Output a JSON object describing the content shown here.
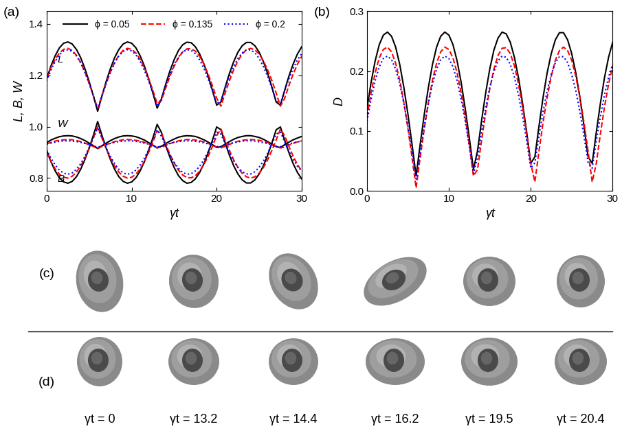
{
  "chart_data": [
    {
      "type": "line",
      "panel": "(a)",
      "xlabel": "γt",
      "ylabel": "L, B, W",
      "xlim": [
        0,
        30
      ],
      "xticks": [
        0,
        10,
        20,
        30
      ],
      "ylim": [
        0.75,
        1.45
      ],
      "yticks": [
        0.8,
        {
          "value": 1.0,
          "label": "1.0"
        },
        1.2,
        1.4
      ],
      "legend": "upper center",
      "annotations": [
        {
          "text": "L",
          "x": 1.3,
          "y": 1.25
        },
        {
          "text": "W",
          "x": 1.3,
          "y": 1.0
        },
        {
          "text": "B",
          "x": 1.3,
          "y": 0.785
        }
      ],
      "x": [
        0,
        0.5,
        1,
        1.5,
        2,
        2.5,
        3,
        3.5,
        4,
        4.5,
        5,
        5.5,
        6,
        6.5,
        7,
        7.5,
        8,
        8.5,
        9,
        9.5,
        10,
        10.5,
        11,
        11.5,
        12,
        12.5,
        13,
        13.5,
        14,
        14.5,
        15,
        15.5,
        16,
        16.5,
        17,
        17.5,
        18,
        18.5,
        19,
        19.5,
        20,
        20.5,
        21,
        21.5,
        22,
        22.5,
        23,
        23.5,
        24,
        24.5,
        25,
        25.5,
        26,
        26.5,
        27,
        27.5,
        28,
        28.5,
        29,
        29.5,
        30
      ],
      "series": [
        {
          "name": "ϕ = 0.05",
          "color": "#000000",
          "line_style": "solid",
          "curves": {
            "L": [
              1.186,
              1.236,
              1.276,
              1.307,
              1.325,
              1.33,
              1.322,
              1.301,
              1.269,
              1.226,
              1.176,
              1.119,
              1.06,
              1.119,
              1.176,
              1.226,
              1.269,
              1.301,
              1.322,
              1.33,
              1.325,
              1.307,
              1.276,
              1.236,
              1.186,
              1.131,
              1.072,
              1.108,
              1.165,
              1.217,
              1.261,
              1.296,
              1.319,
              1.329,
              1.327,
              1.311,
              1.283,
              1.244,
              1.197,
              1.142,
              1.084,
              1.096,
              1.154,
              1.207,
              1.253,
              1.29,
              1.315,
              1.328,
              1.328,
              1.315,
              1.29,
              1.253,
              1.207,
              1.154,
              1.096,
              1.084,
              1.142,
              1.197,
              1.244,
              1.283,
              1.311
            ],
            "B": [
              0.908,
              0.864,
              0.828,
              0.801,
              0.785,
              0.78,
              0.787,
              0.805,
              0.834,
              0.872,
              0.917,
              0.967,
              1.02,
              0.967,
              0.917,
              0.872,
              0.834,
              0.805,
              0.787,
              0.78,
              0.785,
              0.801,
              0.828,
              0.864,
              0.908,
              0.957,
              1.009,
              0.978,
              0.927,
              0.881,
              0.841,
              0.81,
              0.79,
              0.78,
              0.783,
              0.797,
              0.822,
              0.856,
              0.899,
              0.947,
              0.999,
              0.988,
              0.937,
              0.889,
              0.848,
              0.816,
              0.793,
              0.781,
              0.781,
              0.793,
              0.816,
              0.848,
              0.889,
              0.937,
              0.988,
              0.999,
              0.947,
              0.899,
              0.856,
              0.822,
              0.797
            ],
            "W": [
              0.938,
              0.948,
              0.955,
              0.961,
              0.964,
              0.965,
              0.964,
              0.96,
              0.954,
              0.946,
              0.936,
              0.926,
              0.915,
              0.926,
              0.936,
              0.946,
              0.954,
              0.96,
              0.964,
              0.965,
              0.964,
              0.961,
              0.955,
              0.948,
              0.938,
              0.928,
              0.917,
              0.924,
              0.934,
              0.944,
              0.952,
              0.959,
              0.963,
              0.965,
              0.964,
              0.962,
              0.956,
              0.949,
              0.94,
              0.93,
              0.919,
              0.922,
              0.932,
              0.942,
              0.951,
              0.958,
              0.962,
              0.965,
              0.965,
              0.962,
              0.958,
              0.951,
              0.942,
              0.932,
              0.922,
              0.919,
              0.93,
              0.94,
              0.949,
              0.956,
              0.962
            ]
          }
        },
        {
          "name": "ϕ = 0.135",
          "color": "#ff0000",
          "line_style": "dashed",
          "curves": {
            "L": [
              1.188,
              1.229,
              1.262,
              1.287,
              1.301,
              1.305,
              1.297,
              1.278,
              1.25,
              1.213,
              1.169,
              1.121,
              1.07,
              1.121,
              1.169,
              1.213,
              1.25,
              1.278,
              1.297,
              1.305,
              1.301,
              1.287,
              1.262,
              1.229,
              1.188,
              1.141,
              1.09,
              1.101,
              1.15,
              1.196,
              1.236,
              1.268,
              1.291,
              1.303,
              1.304,
              1.294,
              1.274,
              1.243,
              1.205,
              1.16,
              1.111,
              1.08,
              1.131,
              1.179,
              1.221,
              1.256,
              1.283,
              1.299,
              1.305,
              1.299,
              1.283,
              1.256,
              1.221,
              1.179,
              1.131,
              1.08,
              1.111,
              1.16,
              1.205,
              1.243,
              1.274
            ],
            "B": [
              0.9,
              0.865,
              0.836,
              0.815,
              0.803,
              0.8,
              0.807,
              0.823,
              0.847,
              0.878,
              0.915,
              0.957,
              1.0,
              0.957,
              0.915,
              0.878,
              0.847,
              0.823,
              0.807,
              0.8,
              0.803,
              0.815,
              0.836,
              0.865,
              0.9,
              0.94,
              0.983,
              0.974,
              0.932,
              0.893,
              0.859,
              0.831,
              0.812,
              0.802,
              0.801,
              0.809,
              0.827,
              0.853,
              0.885,
              0.923,
              0.965,
              0.991,
              0.948,
              0.908,
              0.871,
              0.841,
              0.819,
              0.805,
              0.8,
              0.805,
              0.819,
              0.841,
              0.871,
              0.908,
              0.948,
              0.991,
              0.965,
              0.923,
              0.885,
              0.853,
              0.827
            ],
            "W": [
              0.933,
              0.939,
              0.944,
              0.947,
              0.949,
              0.95,
              0.949,
              0.946,
              0.942,
              0.936,
              0.93,
              0.923,
              0.915,
              0.923,
              0.93,
              0.936,
              0.942,
              0.946,
              0.949,
              0.95,
              0.949,
              0.947,
              0.944,
              0.939,
              0.933,
              0.926,
              0.918,
              0.92,
              0.927,
              0.934,
              0.94,
              0.945,
              0.948,
              0.95,
              0.95,
              0.948,
              0.945,
              0.941,
              0.935,
              0.928,
              0.921,
              0.917,
              0.924,
              0.931,
              0.938,
              0.943,
              0.947,
              0.949,
              0.95,
              0.949,
              0.947,
              0.943,
              0.938,
              0.931,
              0.924,
              0.917,
              0.921,
              0.928,
              0.935,
              0.941,
              0.945
            ]
          }
        },
        {
          "name": "ϕ = 0.2",
          "color": "#0000ff",
          "line_style": "dotted",
          "curves": {
            "L": [
              1.178,
              1.22,
              1.254,
              1.28,
              1.295,
              1.3,
              1.293,
              1.276,
              1.248,
              1.212,
              1.168,
              1.12,
              1.07,
              1.12,
              1.168,
              1.212,
              1.248,
              1.276,
              1.293,
              1.3,
              1.295,
              1.28,
              1.254,
              1.22,
              1.178,
              1.13,
              1.08,
              1.11,
              1.159,
              1.204,
              1.241,
              1.271,
              1.291,
              1.3,
              1.297,
              1.284,
              1.26,
              1.227,
              1.186,
              1.14,
              1.09,
              1.1,
              1.15,
              1.195,
              1.234,
              1.266,
              1.287,
              1.299,
              1.299,
              1.288,
              1.266,
              1.234,
              1.195,
              1.15,
              1.1,
              1.09,
              1.14,
              1.186,
              1.227,
              1.26,
              1.284
            ],
            "B": [
              0.911,
              0.878,
              0.851,
              0.831,
              0.819,
              0.815,
              0.82,
              0.834,
              0.856,
              0.884,
              0.918,
              0.956,
              0.995,
              0.956,
              0.918,
              0.884,
              0.856,
              0.834,
              0.82,
              0.815,
              0.819,
              0.831,
              0.851,
              0.878,
              0.911,
              0.948,
              0.987,
              0.963,
              0.925,
              0.89,
              0.861,
              0.838,
              0.822,
              0.815,
              0.817,
              0.828,
              0.846,
              0.872,
              0.904,
              0.94,
              0.979,
              0.971,
              0.933,
              0.897,
              0.866,
              0.842,
              0.825,
              0.816,
              0.816,
              0.825,
              0.842,
              0.866,
              0.897,
              0.933,
              0.971,
              0.979,
              0.94,
              0.904,
              0.872,
              0.846,
              0.828
            ],
            "W": [
              0.932,
              0.936,
              0.94,
              0.943,
              0.945,
              0.945,
              0.944,
              0.942,
              0.939,
              0.935,
              0.931,
              0.925,
              0.92,
              0.925,
              0.931,
              0.935,
              0.939,
              0.942,
              0.944,
              0.945,
              0.945,
              0.943,
              0.94,
              0.936,
              0.932,
              0.927,
              0.921,
              0.924,
              0.93,
              0.935,
              0.939,
              0.942,
              0.944,
              0.945,
              0.945,
              0.943,
              0.941,
              0.937,
              0.933,
              0.928,
              0.922,
              0.923,
              0.929,
              0.934,
              0.938,
              0.941,
              0.944,
              0.945,
              0.945,
              0.944,
              0.941,
              0.938,
              0.934,
              0.929,
              0.923,
              0.922,
              0.928,
              0.933,
              0.937,
              0.941,
              0.943
            ]
          }
        }
      ]
    },
    {
      "type": "line",
      "panel": "(b)",
      "xlabel": "γt",
      "ylabel": "D",
      "xlim": [
        0,
        30
      ],
      "xticks": [
        0,
        10,
        20,
        30
      ],
      "ylim": [
        0,
        0.3
      ],
      "yticks": [
        {
          "value": 0,
          "label": "0.0"
        },
        0.1,
        0.2,
        0.3
      ],
      "x": [
        0,
        0.5,
        1,
        1.5,
        2,
        2.5,
        3,
        3.5,
        4,
        4.5,
        5,
        5.5,
        6,
        6.5,
        7,
        7.5,
        8,
        8.5,
        9,
        9.5,
        10,
        10.5,
        11,
        11.5,
        12,
        12.5,
        13,
        13.5,
        14,
        14.5,
        15,
        15.5,
        16,
        16.5,
        17,
        17.5,
        18,
        18.5,
        19,
        19.5,
        20,
        20.5,
        21,
        21.5,
        22,
        22.5,
        23,
        23.5,
        24,
        24.5,
        25,
        25.5,
        26,
        26.5,
        27,
        27.5,
        28,
        28.5,
        29,
        29.5,
        30
      ],
      "series": [
        {
          "name": "ϕ = 0.05",
          "color": "#000000",
          "line_style": "solid",
          "values": [
            0.137,
            0.181,
            0.217,
            0.244,
            0.26,
            0.265,
            0.258,
            0.24,
            0.211,
            0.173,
            0.128,
            0.078,
            0.025,
            0.078,
            0.128,
            0.173,
            0.211,
            0.24,
            0.258,
            0.265,
            0.26,
            0.244,
            0.217,
            0.181,
            0.137,
            0.088,
            0.036,
            0.067,
            0.118,
            0.164,
            0.204,
            0.235,
            0.255,
            0.265,
            0.262,
            0.248,
            0.223,
            0.189,
            0.146,
            0.098,
            0.046,
            0.057,
            0.108,
            0.156,
            0.197,
            0.229,
            0.252,
            0.264,
            0.264,
            0.252,
            0.229,
            0.197,
            0.156,
            0.108,
            0.057,
            0.046,
            0.098,
            0.146,
            0.189,
            0.223,
            0.248
          ]
        },
        {
          "name": "ϕ = 0.135",
          "color": "#ff0000",
          "line_style": "dashed",
          "values": [
            0.123,
            0.164,
            0.197,
            0.222,
            0.236,
            0.24,
            0.232,
            0.213,
            0.185,
            0.148,
            0.104,
            0.056,
            0.005,
            0.056,
            0.104,
            0.148,
            0.185,
            0.213,
            0.232,
            0.24,
            0.236,
            0.222,
            0.197,
            0.164,
            0.123,
            0.076,
            0.025,
            0.036,
            0.085,
            0.131,
            0.171,
            0.203,
            0.226,
            0.238,
            0.239,
            0.229,
            0.209,
            0.178,
            0.14,
            0.095,
            0.046,
            0.015,
            0.066,
            0.114,
            0.156,
            0.191,
            0.218,
            0.234,
            0.24,
            0.234,
            0.218,
            0.191,
            0.156,
            0.114,
            0.066,
            0.015,
            0.046,
            0.095,
            0.14,
            0.178,
            0.209
          ]
        },
        {
          "name": "ϕ = 0.2",
          "color": "#0000ff",
          "line_style": "dotted",
          "values": [
            0.116,
            0.153,
            0.184,
            0.207,
            0.221,
            0.225,
            0.219,
            0.203,
            0.179,
            0.146,
            0.108,
            0.065,
            0.02,
            0.065,
            0.108,
            0.146,
            0.179,
            0.203,
            0.219,
            0.225,
            0.221,
            0.207,
            0.184,
            0.153,
            0.116,
            0.074,
            0.029,
            0.056,
            0.1,
            0.139,
            0.173,
            0.199,
            0.217,
            0.225,
            0.223,
            0.211,
            0.19,
            0.16,
            0.124,
            0.083,
            0.038,
            0.047,
            0.091,
            0.132,
            0.167,
            0.194,
            0.214,
            0.224,
            0.224,
            0.214,
            0.194,
            0.167,
            0.132,
            0.091,
            0.047,
            0.038,
            0.083,
            0.124,
            0.16,
            0.19,
            0.211
          ]
        }
      ]
    }
  ],
  "shapes": {
    "row_labels": [
      "(c)",
      "(d)"
    ],
    "times": [
      "γt = 0",
      "γt = 13.2",
      "γt = 14.4",
      "γt = 16.2",
      "γt = 19.5",
      "γt = 20.4"
    ]
  }
}
